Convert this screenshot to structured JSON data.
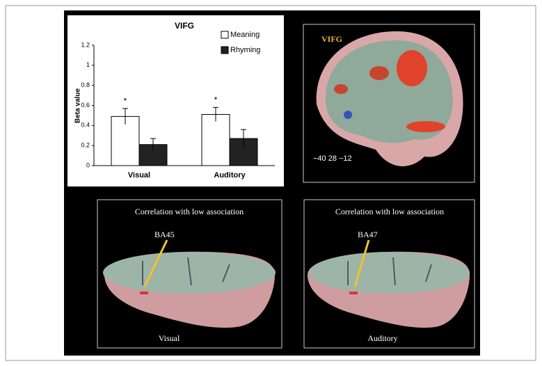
{
  "chart_data": {
    "type": "bar",
    "title": "VIFG",
    "y_label": "Beta value",
    "categories": [
      "Visual",
      "Auditory"
    ],
    "series": [
      {
        "name": "Meaning",
        "color": "#ffffff",
        "values": [
          0.49,
          0.51
        ],
        "errors": [
          0.08,
          0.07
        ]
      },
      {
        "name": "Rhyming",
        "color": "#222222",
        "values": [
          0.21,
          0.27
        ],
        "errors": [
          0.06,
          0.09
        ]
      }
    ],
    "annotations": [
      "*",
      "*"
    ],
    "ylim": [
      0,
      1.2
    ],
    "yticks": [
      0,
      0.2,
      0.4,
      0.6,
      0.8,
      1,
      1.2
    ],
    "grid": false
  },
  "panels": {
    "sagittal": {
      "label": "VIFG",
      "coordinates": "−40 28 −12"
    },
    "visual": {
      "title": "Correlation with low association",
      "region": "BA45",
      "caption": "Visual"
    },
    "auditory": {
      "title": "Correlation with low association",
      "region": "BA47",
      "caption": "Auditory"
    }
  }
}
